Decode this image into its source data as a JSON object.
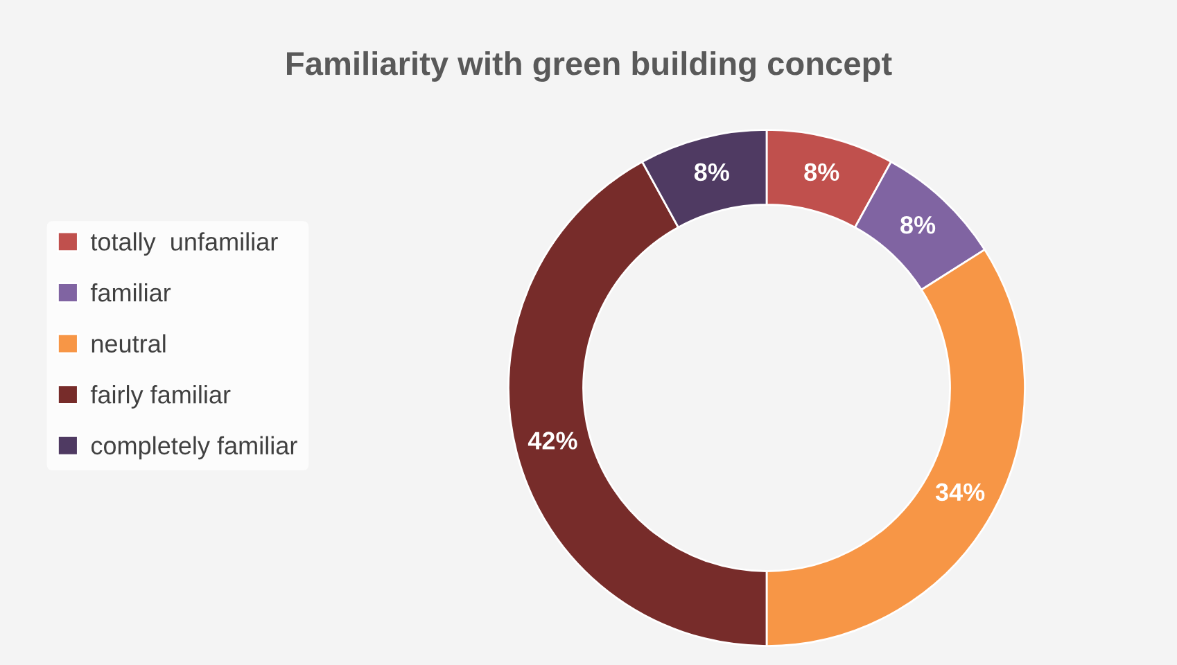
{
  "chart_data": {
    "type": "donut",
    "title": "Familiarity with green building concept",
    "categories": [
      "totally  unfamiliar",
      "familiar",
      "neutral",
      "fairly familiar",
      "completely familiar"
    ],
    "values": [
      8,
      8,
      34,
      42,
      8
    ],
    "colors": [
      "#c0504d",
      "#8064a2",
      "#f79646",
      "#772c2a",
      "#4f3a62"
    ],
    "value_labels": [
      "8%",
      "8%",
      "34%",
      "42%",
      "8%"
    ],
    "legend": "left"
  }
}
